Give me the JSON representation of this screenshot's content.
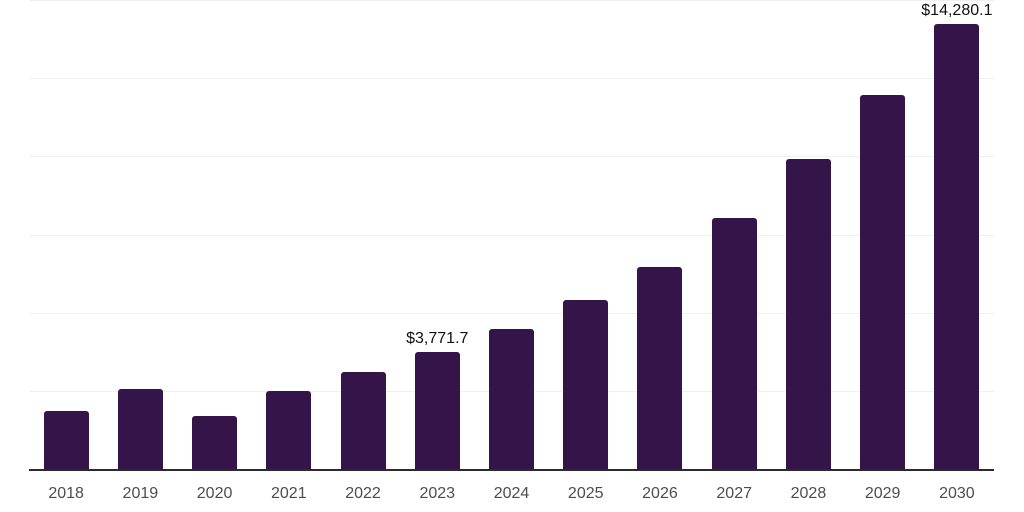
{
  "chart_data": {
    "type": "bar",
    "categories": [
      "2018",
      "2019",
      "2020",
      "2021",
      "2022",
      "2023",
      "2024",
      "2025",
      "2026",
      "2027",
      "2028",
      "2029",
      "2030"
    ],
    "values": [
      1890,
      2590,
      1730,
      2530,
      3130,
      3771.7,
      4510,
      5440,
      6490,
      8060,
      9950,
      12000,
      14280.1
    ],
    "data_labels": {
      "2023": "$3,771.7",
      "2030": "$14,280.1"
    },
    "xlabel": "",
    "ylabel": "",
    "ylim": [
      0,
      15000
    ],
    "grid_step": 2500,
    "grid": true,
    "y_tick_labels_visible": false,
    "legend": "none",
    "colors": {
      "bar": "#351449",
      "gridline": "#f0f0f0",
      "axis_line": "#2b2b2b",
      "tick_label": "#4d4d4d",
      "data_label": "#111111",
      "background": "#ffffff"
    }
  }
}
